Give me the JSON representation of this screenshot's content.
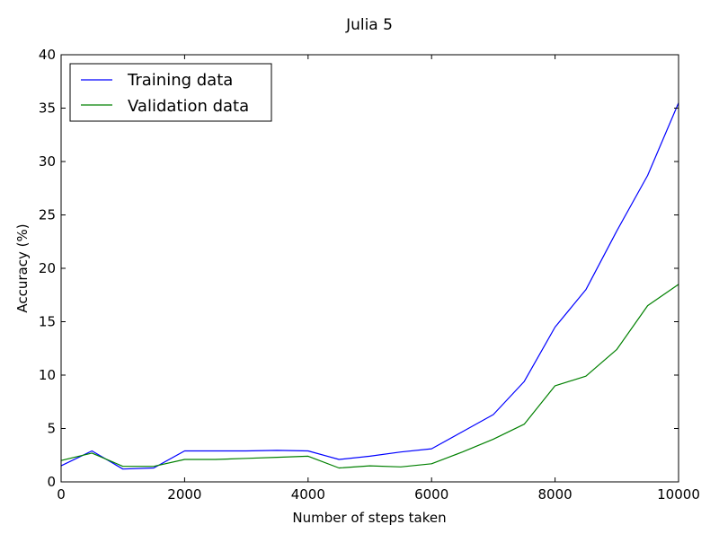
{
  "chart_data": {
    "type": "line",
    "title": "Julia 5",
    "xlabel": "Number of steps taken",
    "ylabel": "Accuracy (%)",
    "xlim": [
      0,
      10000
    ],
    "ylim": [
      0,
      40
    ],
    "x_ticks": [
      0,
      2000,
      4000,
      6000,
      8000,
      10000
    ],
    "y_ticks": [
      0,
      5,
      10,
      15,
      20,
      25,
      30,
      35,
      40
    ],
    "grid": false,
    "legend_position": "top-left",
    "x": [
      0,
      500,
      1000,
      1500,
      2000,
      2500,
      3000,
      3500,
      4000,
      4500,
      5000,
      5500,
      6000,
      6500,
      7000,
      7500,
      8000,
      8500,
      9000,
      9500,
      10000
    ],
    "series": [
      {
        "name": "Training data",
        "color": "#0000ff",
        "values": [
          1.5,
          2.9,
          1.2,
          1.3,
          2.9,
          2.9,
          2.9,
          2.95,
          2.9,
          2.1,
          2.4,
          2.8,
          3.1,
          4.7,
          6.3,
          9.4,
          14.5,
          18.0,
          23.5,
          28.7,
          35.5
        ]
      },
      {
        "name": "Validation data",
        "color": "#008000",
        "values": [
          2.0,
          2.7,
          1.45,
          1.45,
          2.1,
          2.1,
          2.2,
          2.3,
          2.4,
          1.3,
          1.5,
          1.4,
          1.7,
          2.8,
          4.0,
          5.4,
          9.0,
          9.9,
          12.4,
          16.5,
          18.5
        ]
      }
    ]
  }
}
